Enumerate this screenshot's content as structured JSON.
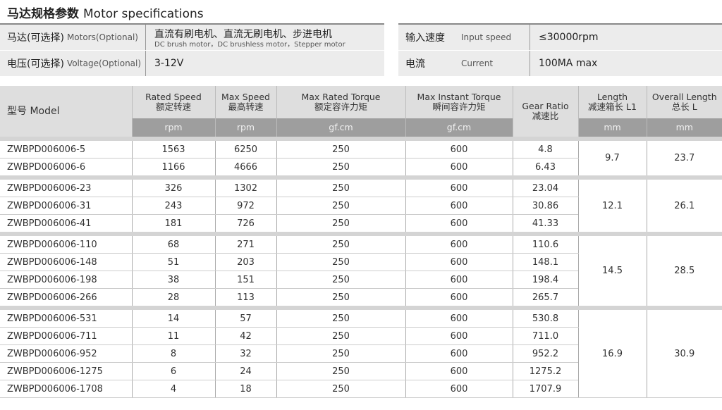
{
  "title": {
    "cn": "马达规格参数",
    "en": "Motor specifications"
  },
  "specs_left": [
    {
      "cn": "马达(可选择)",
      "en": "Motors(Optional)",
      "value": "直流有刷电机、直流无刷电机、步进电机",
      "sub": "DC brush motor，DC brushless motor，Stepper motor"
    },
    {
      "cn": "电压(可选择)",
      "en": "Voltage(Optional)",
      "value": "3-12V"
    }
  ],
  "specs_right": [
    {
      "cn": "输入速度",
      "en": "Input speed",
      "value": "≤30000rpm"
    },
    {
      "cn": "电流",
      "en": "Current",
      "value": "100MA max"
    }
  ],
  "table": {
    "model_header": "型号 Model",
    "headers": [
      {
        "en": "Rated Speed",
        "cn": "额定转速",
        "unit": "rpm"
      },
      {
        "en": "Max Speed",
        "cn": "最高转速",
        "unit": "rpm"
      },
      {
        "en": "Max Rated Torque",
        "cn": "额定容许力矩",
        "unit": "gf.cm"
      },
      {
        "en": "Max Instant Torque",
        "cn": "瞬间容许力矩",
        "unit": "gf.cm"
      },
      {
        "en": "Gear Ratio",
        "cn": "减速比",
        "unit": ""
      },
      {
        "en": "Length",
        "cn": "减速箱长 L1",
        "unit": "mm"
      },
      {
        "en": "Overall Length",
        "cn": "总长 L",
        "unit": "mm"
      }
    ],
    "groups": [
      {
        "length": "9.7",
        "overall": "23.7",
        "rows": [
          [
            "ZWBPD006006-5",
            "1563",
            "6250",
            "250",
            "600",
            "4.8"
          ],
          [
            "ZWBPD006006-6",
            "1166",
            "4666",
            "250",
            "600",
            "6.43"
          ]
        ]
      },
      {
        "length": "12.1",
        "overall": "26.1",
        "rows": [
          [
            "ZWBPD006006-23",
            "326",
            "1302",
            "250",
            "600",
            "23.04"
          ],
          [
            "ZWBPD006006-31",
            "243",
            "972",
            "250",
            "600",
            "30.86"
          ],
          [
            "ZWBPD006006-41",
            "181",
            "726",
            "250",
            "600",
            "41.33"
          ]
        ]
      },
      {
        "length": "14.5",
        "overall": "28.5",
        "rows": [
          [
            "ZWBPD006006-110",
            "68",
            "271",
            "250",
            "600",
            "110.6"
          ],
          [
            "ZWBPD006006-148",
            "51",
            "203",
            "250",
            "600",
            "148.1"
          ],
          [
            "ZWBPD006006-198",
            "38",
            "151",
            "250",
            "600",
            "198.4"
          ],
          [
            "ZWBPD006006-266",
            "28",
            "113",
            "250",
            "600",
            "265.7"
          ]
        ]
      },
      {
        "length": "16.9",
        "overall": "30.9",
        "rows": [
          [
            "ZWBPD006006-531",
            "14",
            "57",
            "250",
            "600",
            "530.8"
          ],
          [
            "ZWBPD006006-711",
            "11",
            "42",
            "250",
            "600",
            "711.0"
          ],
          [
            "ZWBPD006006-952",
            "8",
            "32",
            "250",
            "600",
            "952.2"
          ],
          [
            "ZWBPD006006-1275",
            "6",
            "24",
            "250",
            "600",
            "1275.2"
          ],
          [
            "ZWBPD006006-1708",
            "4",
            "18",
            "250",
            "600",
            "1707.9"
          ]
        ]
      }
    ]
  }
}
